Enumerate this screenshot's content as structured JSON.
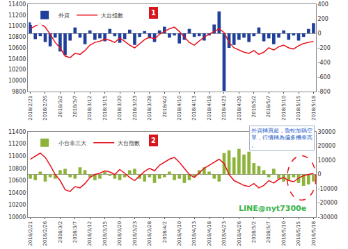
{
  "chart_data": [
    {
      "type": "bar",
      "badge": "1",
      "categories": [
        "2018/2/21",
        null,
        null,
        "2018/2/26",
        null,
        null,
        "2018/3/2",
        null,
        null,
        "2018/3/7",
        null,
        null,
        "2018/3/12",
        null,
        null,
        "2018/3/15",
        null,
        null,
        "2018/3/20",
        null,
        null,
        "2018/3/23",
        null,
        null,
        "2018/3/28",
        null,
        null,
        "2018/4/2",
        null,
        null,
        "2018/4/10",
        null,
        null,
        "2018/4/13",
        null,
        null,
        "2018/4/18",
        null,
        null,
        "2018/4/23",
        null,
        null,
        "2018/4/26",
        null,
        null,
        "2018/5/2",
        null,
        null,
        "2018/5/7",
        null,
        null,
        "2018/5/10",
        null,
        null,
        "2018/5/15",
        null,
        null,
        "2018/5/18"
      ],
      "series": [
        {
          "name": "外資",
          "type": "bar",
          "color": "#1f3f9a",
          "axis": "y2",
          "values": [
            150,
            -80,
            -40,
            -120,
            -180,
            -60,
            -250,
            -300,
            -100,
            80,
            -60,
            -150,
            40,
            -90,
            -70,
            -110,
            60,
            -40,
            -130,
            -80,
            50,
            -160,
            -50,
            30,
            -70,
            -120,
            40,
            90,
            -60,
            -30,
            -140,
            -90,
            60,
            -50,
            -40,
            -100,
            -30,
            120,
            300,
            -790,
            -200,
            -160,
            -90,
            -60,
            -120,
            -40,
            80,
            -110,
            -70,
            -150,
            -60,
            40,
            -90,
            -30,
            -100,
            -50,
            60,
            140
          ]
        },
        {
          "name": "大台指數",
          "type": "line",
          "color": "#e8101a",
          "values": [
            10950,
            11000,
            11050,
            10980,
            10850,
            10700,
            10600,
            10450,
            10420,
            10500,
            10480,
            10550,
            10650,
            10700,
            10720,
            10760,
            10740,
            10700,
            10780,
            10720,
            10650,
            10600,
            10680,
            10750,
            10800,
            10760,
            10850,
            10900,
            10950,
            10980,
            10900,
            10800,
            10700,
            10650,
            10720,
            10800,
            10850,
            10900,
            10950,
            10880,
            10700,
            10600,
            10560,
            10520,
            10500,
            10550,
            10480,
            10520,
            10600,
            10560,
            10620,
            10650,
            10600,
            10580,
            10640,
            10680,
            10700,
            10720
          ]
        }
      ],
      "ylim": [
        9800,
        11400
      ],
      "yticks": [
        9800,
        10000,
        10200,
        10400,
        10600,
        10800,
        11000,
        11200,
        11400
      ],
      "y2lim": [
        -800,
        400
      ],
      "y2ticks": [
        -800,
        -600,
        -400,
        -200,
        0,
        200,
        400
      ],
      "grid": false,
      "legend": "top left"
    },
    {
      "type": "bar",
      "badge": "2",
      "note": [
        "外資轉買超，魯蛇加碼空",
        "單，行情轉為偏多機率高",
        "。"
      ],
      "watermark": "LINE@nyt7300e",
      "categories": [
        "2018/2/21",
        null,
        null,
        "2018/2/26",
        null,
        null,
        "2018/3/2",
        null,
        null,
        "2018/3/7",
        null,
        null,
        "2018/3/12",
        null,
        null,
        "2018/3/15",
        null,
        null,
        "2018/3/20",
        null,
        null,
        "2018/3/23",
        null,
        null,
        "2018/3/28",
        null,
        null,
        "2018/4/2",
        null,
        null,
        "2018/4/10",
        null,
        null,
        "2018/4/13",
        null,
        null,
        "2018/4/18",
        null,
        null,
        "2018/4/23",
        null,
        null,
        "2018/4/26",
        null,
        null,
        "2018/5/2",
        null,
        null,
        "2018/5/7",
        null,
        null,
        "2018/5/10",
        null,
        null,
        "2018/5/15",
        null,
        null,
        "2018/5/18"
      ],
      "series": [
        {
          "name": "小台非三大",
          "type": "bar",
          "color": "#8db33a",
          "axis": "y2",
          "values": [
            -3000,
            -4000,
            2000,
            -5000,
            -2000,
            -3000,
            3000,
            4000,
            -2000,
            -3000,
            5000,
            3000,
            -2000,
            -4000,
            -3000,
            2000,
            -1000,
            -3000,
            -4000,
            -2000,
            3000,
            4000,
            -3000,
            -5000,
            -2000,
            -6000,
            -3000,
            -2000,
            2000,
            -4000,
            -3000,
            -6000,
            -4000,
            -2000,
            3000,
            5000,
            2000,
            -3000,
            -5000,
            15000,
            17000,
            12000,
            18000,
            14000,
            16000,
            8000,
            6000,
            3000,
            -2000,
            4000,
            -3000,
            -5000,
            -4000,
            -2000,
            -6000,
            -8000,
            -7000,
            -5000
          ]
        },
        {
          "name": "大台指數",
          "type": "line",
          "color": "#e8101a",
          "values": [
            10950,
            11000,
            11050,
            10980,
            10850,
            10700,
            10600,
            10450,
            10420,
            10500,
            10480,
            10550,
            10650,
            10700,
            10720,
            10760,
            10740,
            10700,
            10780,
            10720,
            10650,
            10600,
            10680,
            10750,
            10800,
            10760,
            10850,
            10900,
            10950,
            10980,
            10900,
            10800,
            10700,
            10650,
            10720,
            10800,
            10850,
            10900,
            10950,
            10880,
            10700,
            10600,
            10560,
            10520,
            10500,
            10550,
            10480,
            10520,
            10600,
            10560,
            10620,
            10650,
            10600,
            10580,
            10640,
            10680,
            10700,
            10720
          ]
        }
      ],
      "ylim": [
        10000,
        11400
      ],
      "yticks": [
        10000,
        10200,
        10400,
        10600,
        10800,
        11000,
        11200,
        11400
      ],
      "y2lim": [
        -30000,
        30000
      ],
      "y2ticks": [
        -30000,
        -20000,
        -10000,
        0,
        10000,
        20000,
        30000
      ],
      "grid": false,
      "legend": "top left"
    }
  ]
}
